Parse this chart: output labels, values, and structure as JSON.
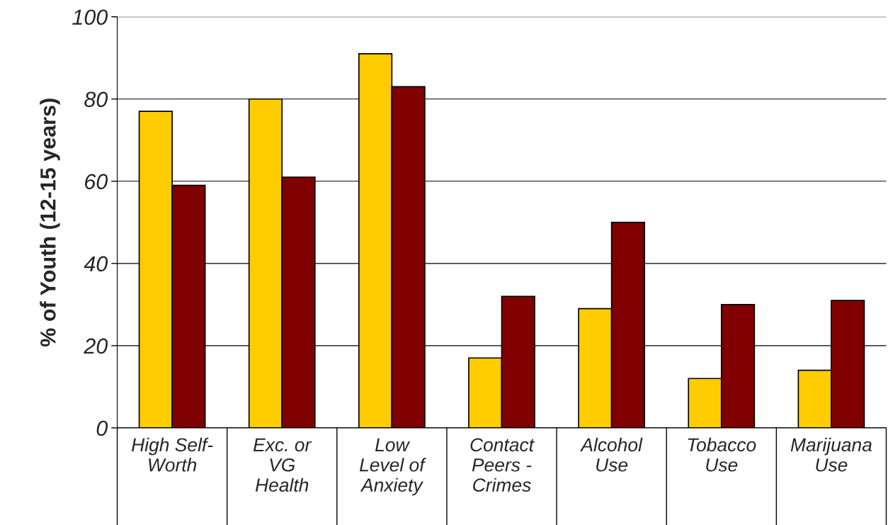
{
  "chart_data": {
    "type": "bar",
    "ylabel": "% of Youth (12-15 years)",
    "categories": [
      "High Self-\nWorth",
      "Exc. or\nVG\nHealth",
      "Low\nLevel of\nAnxiety",
      "Contact\nPeers -\nCrimes",
      "Alcohol\nUse",
      "Tobacco\nUse",
      "Marijuana\nUse"
    ],
    "series": [
      {
        "color": "#ffcc00",
        "values": [
          77,
          80,
          91,
          17,
          29,
          12,
          14
        ]
      },
      {
        "color": "#800000",
        "values": [
          59,
          61,
          83,
          32,
          50,
          30,
          31
        ]
      }
    ],
    "ylim": [
      0,
      100
    ],
    "yticks": [
      0,
      20,
      40,
      60,
      80,
      100
    ],
    "grid": "y"
  }
}
